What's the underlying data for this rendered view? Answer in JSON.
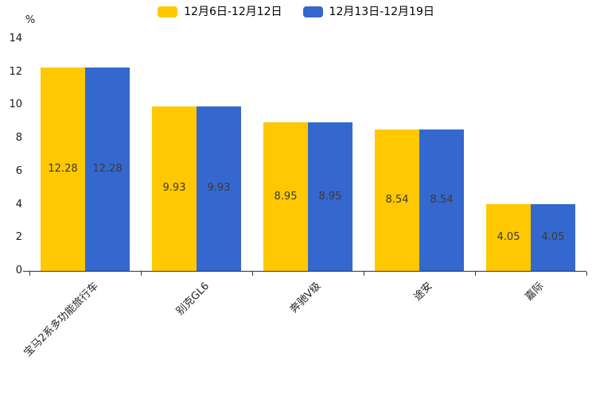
{
  "chart_data": {
    "type": "bar",
    "title": "",
    "categories": [
      "宝马2系多功能旅行车",
      "别克GL6",
      "奔驰V级",
      "途安",
      "嘉际"
    ],
    "series": [
      {
        "name": "12月6日-12月12日",
        "color": "#FFC800",
        "values": [
          12.28,
          9.93,
          8.95,
          8.54,
          4.05
        ]
      },
      {
        "name": "12月13日-12月19日",
        "color": "#3568CE",
        "values": [
          12.28,
          9.93,
          8.95,
          8.54,
          4.05
        ]
      }
    ],
    "xlabel": "",
    "ylabel": "%",
    "ylim": [
      0,
      14
    ],
    "ytick_step": 2,
    "grid": false,
    "legend_position": "top",
    "value_labels": "inside-center",
    "value_label_color": "#3a3a3a",
    "axis_color": "#333333"
  }
}
